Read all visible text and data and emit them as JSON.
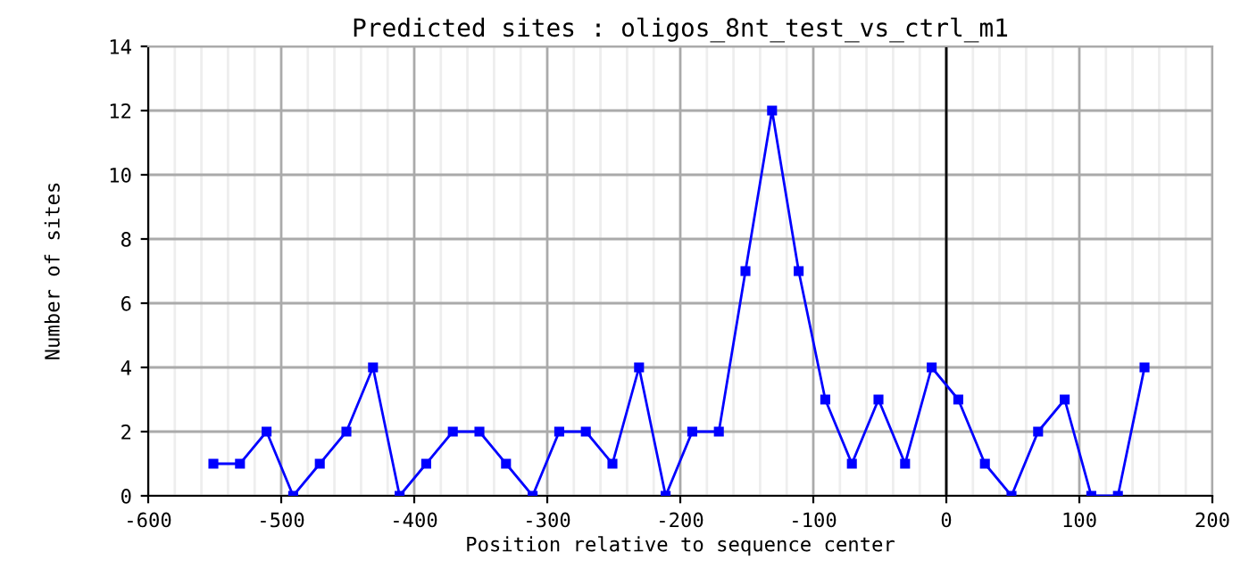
{
  "chart_data": {
    "type": "line",
    "title": "Predicted sites : oligos_8nt_test_vs_ctrl_m1",
    "xlabel": "Position relative to sequence center",
    "ylabel": "Number of sites",
    "x": [
      -551,
      -531,
      -511,
      -491,
      -471,
      -451,
      -431,
      -411,
      -391,
      -371,
      -351,
      -331,
      -311,
      -291,
      -271,
      -251,
      -231,
      -211,
      -191,
      -171,
      -151,
      -131,
      -111,
      -91,
      -71,
      -51,
      -31,
      -11,
      9,
      29,
      49,
      69,
      89,
      109,
      129,
      149
    ],
    "series": [
      {
        "color": "#0000ff",
        "values": [
          1,
          1,
          2,
          0,
          1,
          2,
          4,
          0,
          1,
          2,
          2,
          1,
          0,
          2,
          2,
          1,
          4,
          0,
          2,
          2,
          7,
          12,
          7,
          3,
          1,
          3,
          1,
          4,
          3,
          1,
          0,
          2,
          3,
          0,
          0,
          4
        ]
      }
    ],
    "xlim": [
      -600,
      200
    ],
    "xticks": [
      -600,
      -500,
      -400,
      -300,
      -200,
      -100,
      0,
      100,
      200
    ],
    "ylim": [
      0,
      14
    ],
    "yticks": [
      0,
      2,
      4,
      6,
      8,
      10,
      12,
      14
    ],
    "ref_lines": [
      {
        "axis": "x",
        "value": 0,
        "color": "#000000"
      }
    ],
    "grid": true,
    "marker": "square",
    "line_style": "solid",
    "legend": false
  }
}
